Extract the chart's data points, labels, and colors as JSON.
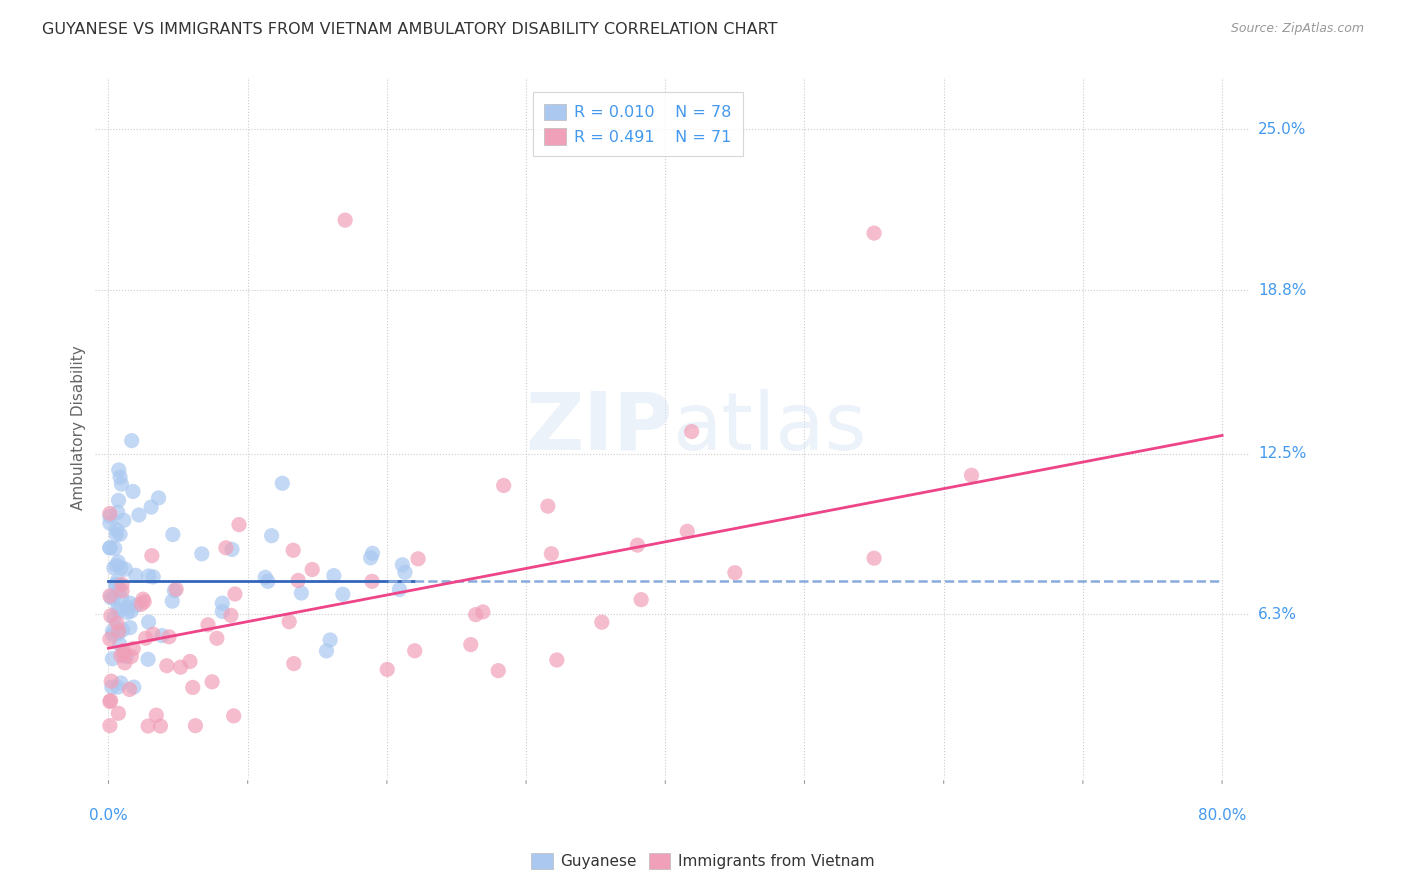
{
  "title": "GUYANESE VS IMMIGRANTS FROM VIETNAM AMBULATORY DISABILITY CORRELATION CHART",
  "source": "Source: ZipAtlas.com",
  "ylabel": "Ambulatory Disability",
  "ytick_labels": [
    "6.3%",
    "12.5%",
    "18.8%",
    "25.0%"
  ],
  "ytick_values": [
    0.063,
    0.125,
    0.188,
    0.25
  ],
  "xlim": [
    0.0,
    0.8
  ],
  "ylim": [
    0.0,
    0.27
  ],
  "legend_r_guyanese": "0.010",
  "legend_n_guyanese": "78",
  "legend_r_vietnam": "0.491",
  "legend_n_vietnam": "71",
  "watermark_zip": "ZIP",
  "watermark_atlas": "atlas",
  "color_guyanese": "#aac8f0",
  "color_vietnam": "#f0a0b8",
  "color_line_guyanese": "#3366bb",
  "color_line_vietnam": "#ee4488",
  "color_axis_labels": "#4499ee",
  "background_color": "#ffffff",
  "line_guyanese_y0": 0.076,
  "line_guyanese_y1": 0.076,
  "line_vietnam_y0": 0.05,
  "line_vietnam_y1": 0.132
}
